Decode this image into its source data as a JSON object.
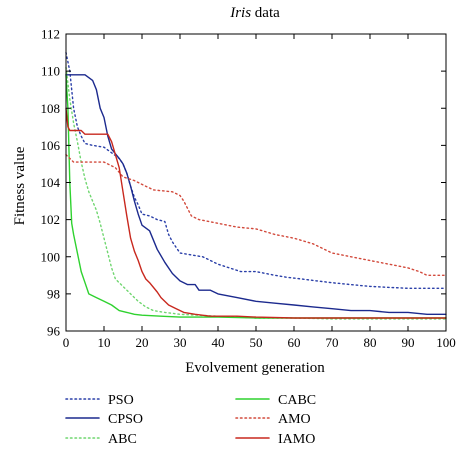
{
  "chart_data": {
    "type": "line",
    "title_italic": "Iris",
    "title_rest": " data",
    "xlabel": "Evolvement generation",
    "ylabel": "Fitness value",
    "xlim": [
      0,
      100
    ],
    "ylim": [
      96,
      112
    ],
    "x_ticks": [
      0,
      10,
      20,
      30,
      40,
      50,
      60,
      70,
      80,
      90,
      100
    ],
    "y_ticks": [
      96,
      98,
      100,
      102,
      104,
      106,
      108,
      110,
      112
    ],
    "grid": false,
    "legend_position": "below plot, two columns",
    "series": [
      {
        "name": "PSO",
        "color": "#2a3fa8",
        "dash": "dotted",
        "points": [
          [
            0,
            111
          ],
          [
            1,
            110
          ],
          [
            2,
            108
          ],
          [
            3,
            107
          ],
          [
            4,
            106.5
          ],
          [
            5,
            106.1
          ],
          [
            7,
            106
          ],
          [
            10,
            105.9
          ],
          [
            12,
            105.6
          ],
          [
            14,
            105.3
          ],
          [
            15,
            105
          ],
          [
            16,
            104.5
          ],
          [
            17,
            103.8
          ],
          [
            18,
            103.2
          ],
          [
            19,
            102.8
          ],
          [
            20,
            102.3
          ],
          [
            22,
            102.2
          ],
          [
            24,
            102
          ],
          [
            26,
            101.9
          ],
          [
            27,
            101.2
          ],
          [
            28,
            100.8
          ],
          [
            30,
            100.2
          ],
          [
            33,
            100.1
          ],
          [
            36,
            100
          ],
          [
            40,
            99.6
          ],
          [
            43,
            99.4
          ],
          [
            46,
            99.2
          ],
          [
            50,
            99.2
          ],
          [
            55,
            99
          ],
          [
            58,
            98.9
          ],
          [
            62,
            98.8
          ],
          [
            66,
            98.7
          ],
          [
            70,
            98.6
          ],
          [
            75,
            98.5
          ],
          [
            80,
            98.4
          ],
          [
            85,
            98.35
          ],
          [
            90,
            98.3
          ],
          [
            95,
            98.3
          ],
          [
            100,
            98.3
          ]
        ]
      },
      {
        "name": "CPSO",
        "color": "#1c2a8e",
        "dash": "solid",
        "points": [
          [
            0,
            109.8
          ],
          [
            5,
            109.8
          ],
          [
            7,
            109.5
          ],
          [
            8,
            109
          ],
          [
            9,
            108
          ],
          [
            10,
            107.5
          ],
          [
            11,
            106.5
          ],
          [
            12,
            105.8
          ],
          [
            14,
            105.3
          ],
          [
            15,
            105
          ],
          [
            16,
            104.5
          ],
          [
            17,
            103.8
          ],
          [
            18,
            103
          ],
          [
            19,
            102.3
          ],
          [
            20,
            101.7
          ],
          [
            22,
            101.4
          ],
          [
            24,
            100.4
          ],
          [
            26,
            99.7
          ],
          [
            28,
            99.1
          ],
          [
            30,
            98.7
          ],
          [
            32,
            98.5
          ],
          [
            34,
            98.5
          ],
          [
            35,
            98.2
          ],
          [
            38,
            98.2
          ],
          [
            40,
            98
          ],
          [
            45,
            97.8
          ],
          [
            50,
            97.6
          ],
          [
            55,
            97.5
          ],
          [
            60,
            97.4
          ],
          [
            65,
            97.3
          ],
          [
            70,
            97.2
          ],
          [
            75,
            97.1
          ],
          [
            80,
            97.1
          ],
          [
            85,
            97
          ],
          [
            90,
            97
          ],
          [
            95,
            96.9
          ],
          [
            100,
            96.9
          ]
        ]
      },
      {
        "name": "ABC",
        "color": "#6fd66f",
        "dash": "dotted",
        "points": [
          [
            0,
            110.2
          ],
          [
            1,
            108.5
          ],
          [
            2,
            107.2
          ],
          [
            3,
            106.2
          ],
          [
            4,
            105.1
          ],
          [
            5,
            104.2
          ],
          [
            6,
            103.5
          ],
          [
            7,
            103
          ],
          [
            8,
            102.5
          ],
          [
            9,
            101.8
          ],
          [
            10,
            101
          ],
          [
            11,
            100.2
          ],
          [
            12,
            99.4
          ],
          [
            13,
            98.8
          ],
          [
            15,
            98.4
          ],
          [
            17,
            98
          ],
          [
            19,
            97.6
          ],
          [
            21,
            97.3
          ],
          [
            23,
            97.1
          ],
          [
            26,
            97
          ],
          [
            30,
            96.9
          ],
          [
            40,
            96.8
          ],
          [
            50,
            96.7
          ],
          [
            60,
            96.7
          ],
          [
            70,
            96.65
          ],
          [
            80,
            96.65
          ],
          [
            90,
            96.65
          ],
          [
            100,
            96.65
          ]
        ]
      },
      {
        "name": "CABC",
        "color": "#2fd22f",
        "dash": "solid",
        "points": [
          [
            0,
            109.8
          ],
          [
            0.5,
            108
          ],
          [
            1,
            104
          ],
          [
            1.5,
            101.8
          ],
          [
            2,
            101.2
          ],
          [
            3,
            100.2
          ],
          [
            4,
            99.2
          ],
          [
            5,
            98.6
          ],
          [
            6,
            98
          ],
          [
            8,
            97.8
          ],
          [
            10,
            97.6
          ],
          [
            12,
            97.4
          ],
          [
            14,
            97.1
          ],
          [
            16,
            97
          ],
          [
            18,
            96.9
          ],
          [
            20,
            96.85
          ],
          [
            25,
            96.8
          ],
          [
            30,
            96.75
          ],
          [
            40,
            96.75
          ],
          [
            50,
            96.7
          ],
          [
            60,
            96.7
          ],
          [
            70,
            96.7
          ],
          [
            80,
            96.7
          ],
          [
            90,
            96.7
          ],
          [
            100,
            96.7
          ]
        ]
      },
      {
        "name": "AMO",
        "color": "#d24a3c",
        "dash": "dotted",
        "points": [
          [
            0,
            105.5
          ],
          [
            2,
            105.1
          ],
          [
            5,
            105.1
          ],
          [
            10,
            105.1
          ],
          [
            13,
            104.8
          ],
          [
            15,
            104.3
          ],
          [
            18,
            104.1
          ],
          [
            20,
            103.9
          ],
          [
            23,
            103.6
          ],
          [
            28,
            103.5
          ],
          [
            30,
            103.3
          ],
          [
            31,
            103
          ],
          [
            32,
            102.6
          ],
          [
            33,
            102.2
          ],
          [
            35,
            102
          ],
          [
            40,
            101.8
          ],
          [
            45,
            101.6
          ],
          [
            50,
            101.5
          ],
          [
            55,
            101.2
          ],
          [
            60,
            101
          ],
          [
            65,
            100.7
          ],
          [
            68,
            100.4
          ],
          [
            70,
            100.2
          ],
          [
            75,
            100
          ],
          [
            80,
            99.8
          ],
          [
            85,
            99.6
          ],
          [
            90,
            99.4
          ],
          [
            93,
            99.2
          ],
          [
            95,
            99
          ],
          [
            100,
            99
          ]
        ]
      },
      {
        "name": "IAMO",
        "color": "#c8281e",
        "dash": "solid",
        "points": [
          [
            0,
            108
          ],
          [
            0.5,
            107
          ],
          [
            1,
            106.8
          ],
          [
            4,
            106.8
          ],
          [
            5,
            106.6
          ],
          [
            11,
            106.6
          ],
          [
            12,
            106.2
          ],
          [
            13,
            105.5
          ],
          [
            14,
            104.8
          ],
          [
            15,
            103.5
          ],
          [
            16,
            102.2
          ],
          [
            17,
            101
          ],
          [
            18,
            100.3
          ],
          [
            19,
            99.8
          ],
          [
            20,
            99.2
          ],
          [
            21,
            98.8
          ],
          [
            22,
            98.6
          ],
          [
            24,
            98.1
          ],
          [
            25,
            97.8
          ],
          [
            27,
            97.4
          ],
          [
            29,
            97.2
          ],
          [
            31,
            97
          ],
          [
            34,
            96.9
          ],
          [
            38,
            96.8
          ],
          [
            45,
            96.8
          ],
          [
            50,
            96.75
          ],
          [
            60,
            96.7
          ],
          [
            70,
            96.7
          ],
          [
            80,
            96.7
          ],
          [
            90,
            96.7
          ],
          [
            100,
            96.7
          ]
        ]
      }
    ]
  }
}
